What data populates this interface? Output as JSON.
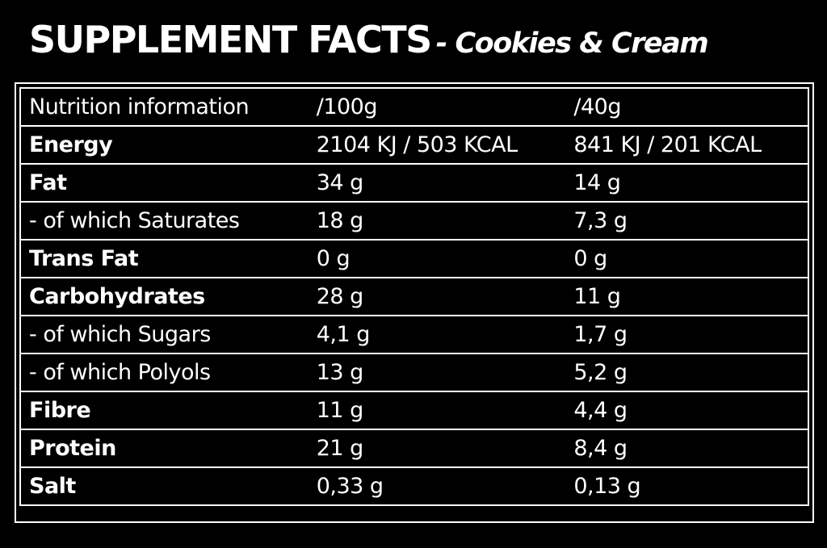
{
  "title": {
    "main": "SUPPLEMENT FACTS",
    "sub": "- Cookies & Cream"
  },
  "table": {
    "header": {
      "label": "Nutrition information",
      "per_100g": "/100g",
      "per_serving": "/40g"
    },
    "rows": [
      {
        "label": "Energy",
        "bold": true,
        "per_100g": "2104 KJ / 503 KCAL",
        "per_serving": "841 KJ / 201 KCAL"
      },
      {
        "label": "Fat",
        "bold": true,
        "per_100g": "34 g",
        "per_serving": "14 g"
      },
      {
        "label": "- of which Saturates",
        "bold": false,
        "per_100g": "18 g",
        "per_serving": "7,3 g"
      },
      {
        "label": "Trans Fat",
        "bold": true,
        "per_100g": "0 g",
        "per_serving": "0 g"
      },
      {
        "label": "Carbohydrates",
        "bold": true,
        "per_100g": "28 g",
        "per_serving": "11 g"
      },
      {
        "label": "- of which Sugars",
        "bold": false,
        "per_100g": "4,1 g",
        "per_serving": "1,7 g"
      },
      {
        "label": "- of which Polyols",
        "bold": false,
        "per_100g": "13 g",
        "per_serving": "5,2 g"
      },
      {
        "label": "Fibre",
        "bold": true,
        "per_100g": "11 g",
        "per_serving": "4,4 g"
      },
      {
        "label": "Protein",
        "bold": true,
        "per_100g": "21 g",
        "per_serving": "8,4 g"
      },
      {
        "label": "Salt",
        "bold": true,
        "per_100g": "0,33 g",
        "per_serving": "0,13 g"
      }
    ]
  }
}
